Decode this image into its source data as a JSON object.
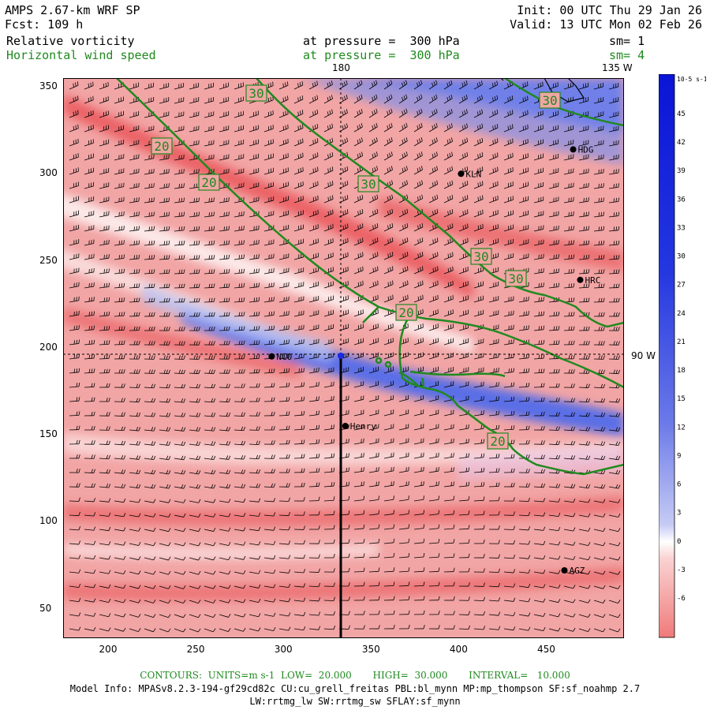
{
  "header": {
    "model": "AMPS 2.67-km WRF SP",
    "forecast": "Fcst: 109 h",
    "init": "Init: 00 UTC Thu 29 Jan 26",
    "valid": "Valid: 13 UTC Mon 02 Feb 26",
    "field1": "Relative vorticity",
    "field1_level": "at pressure =  300 hPa",
    "field1_sm": "sm= 1",
    "field2": "Horizontal wind speed",
    "field2_level": "at pressure =  300 hPa",
    "field2_sm": "sm= 4"
  },
  "map": {
    "meridian_labels": {
      "m180": "180",
      "m135w": "135 W",
      "m90w": "90 W"
    },
    "x_ticks": [
      "200",
      "250",
      "300",
      "350",
      "400",
      "450"
    ],
    "y_ticks": [
      "350",
      "300",
      "250",
      "200",
      "150",
      "100",
      "50"
    ],
    "x_range": [
      175,
      495
    ],
    "y_range": [
      33,
      355
    ],
    "stations": [
      {
        "name": "HDG",
        "x": 466,
        "y": 314
      },
      {
        "name": "KLN",
        "x": 402,
        "y": 300
      },
      {
        "name": "HRC",
        "x": 470,
        "y": 239
      },
      {
        "name": "NCO",
        "x": 294,
        "y": 195
      },
      {
        "name": "Henry",
        "x": 336,
        "y": 155
      },
      {
        "name": "AGZ",
        "x": 461,
        "y": 72
      }
    ],
    "contour_labels": [
      "30",
      "30",
      "20",
      "20",
      "30",
      "30",
      "30",
      "20",
      "20"
    ],
    "contour_color": "#1f8a1f",
    "pos_color": "#e8474b",
    "neg_color": "#1b2ae0"
  },
  "colorbar": {
    "unit": "10-5 s-1",
    "ticks": [
      "45",
      "42",
      "39",
      "36",
      "33",
      "30",
      "27",
      "24",
      "21",
      "18",
      "15",
      "12",
      "9",
      "6",
      "3",
      "0",
      "-3",
      "-6"
    ]
  },
  "footer": {
    "contours": "CONTOURS:  UNITS=m s-1  LOW=  20.000       HIGH=  30.000       INTERVAL=   10.000",
    "model_info": "Model Info: MPASv8.2.3-194-gf29cd82c CU:cu_grell_freitas PBL:bl_mynn MP:mp_thompson SF:sf_noahmp 2.7",
    "model_info2": "LW:rrtmg_lw SW:rrtmg_sw SFLAY:sf_mynn"
  }
}
